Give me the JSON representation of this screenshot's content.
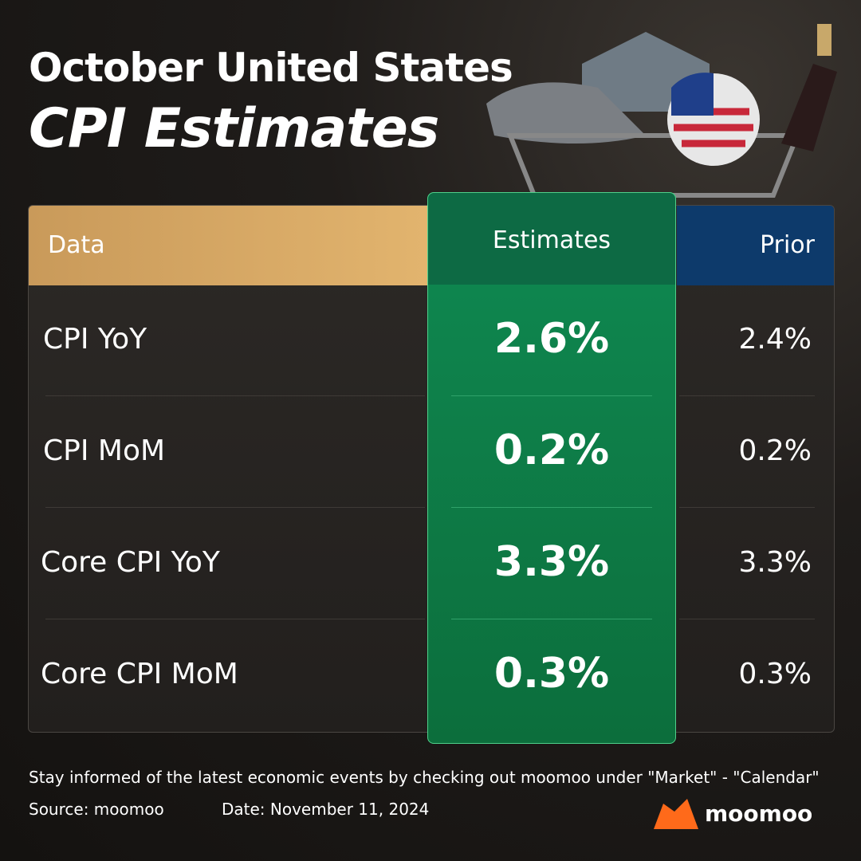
{
  "header": {
    "title_line1": "October United States",
    "title_line2": "CPI Estimates"
  },
  "table": {
    "columns": [
      "Data",
      "Estimates",
      "Prior"
    ],
    "rows": [
      [
        "CPI YoY",
        "2.6%",
        "2.4%"
      ],
      [
        "CPI MoM",
        "0.2%",
        "0.2%"
      ],
      [
        "Core CPI YoY",
        "3.3%",
        "3.3%"
      ],
      [
        "Core CPI MoM",
        "0.3%",
        "0.3%"
      ]
    ]
  },
  "footer": {
    "note": "Stay informed of the latest economic events by checking out moomoo under \"Market\" - \"Calendar\"",
    "source": "Source: moomoo",
    "date": "Date: November 11, 2024",
    "brand": "moomoo"
  }
}
